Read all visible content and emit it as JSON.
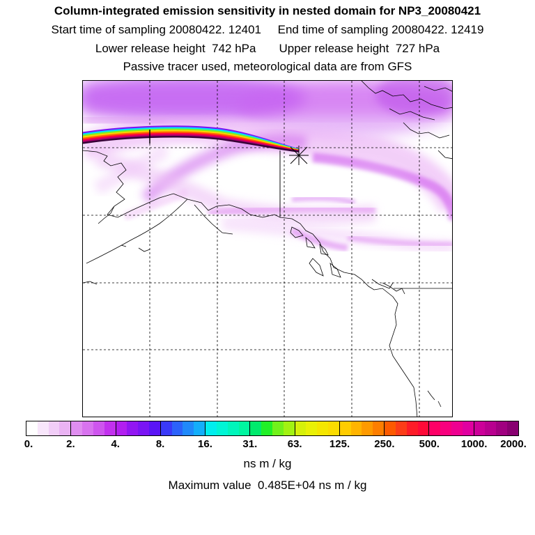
{
  "header": {
    "title": "Column-integrated emission sensitivity in nested domain for NP3_20080421",
    "line1": "Start time of sampling 20080422. 12401     End time of sampling 20080422. 12419",
    "line2": "Lower release height  742 hPa       Upper release height  727 hPa",
    "line3": "Passive tracer used, meteorological data are from GFS"
  },
  "legend": {
    "ticks": [
      "0.",
      "2.",
      "4.",
      "8.",
      "16.",
      "31.",
      "63.",
      "125.",
      "250.",
      "500.",
      "1000.",
      "2000."
    ],
    "colors": [
      "#ffffff",
      "#f8e6fb",
      "#f1cdf7",
      "#eab3f3",
      "#e08ef0",
      "#d873ef",
      "#ce55ee",
      "#c231ee",
      "#b21ff0",
      "#9216f2",
      "#7a14f4",
      "#5a14f6",
      "#3a39f8",
      "#2c62fa",
      "#2089fa",
      "#13aefa",
      "#00eeee",
      "#00f5d5",
      "#00f5bb",
      "#00f5a0",
      "#00ea6c",
      "#22f027",
      "#72f11b",
      "#a2f212",
      "#d6f00a",
      "#e9f006",
      "#f4e600",
      "#fbdc00",
      "#ffcc00",
      "#ffb400",
      "#fe9a00",
      "#fd7e00",
      "#fd5a00",
      "#fc3d18",
      "#fd1c28",
      "#fe0a38",
      "#fe0066",
      "#f8007e",
      "#ee0090",
      "#e000a0",
      "#cc0099",
      "#b8008f",
      "#a00080",
      "#880070",
      "#6c0066",
      "#5a0057",
      "#480048",
      "#380038"
    ],
    "units": "ns m / kg",
    "max_text": "Maximum value  0.485E+04 ns m / kg"
  },
  "map": {
    "plume_colors": [
      "#7a14f4",
      "#00e0ff",
      "#80f020",
      "#ffd000",
      "#ff6000",
      "#ff0040",
      "#b00070",
      "#380038"
    ]
  }
}
